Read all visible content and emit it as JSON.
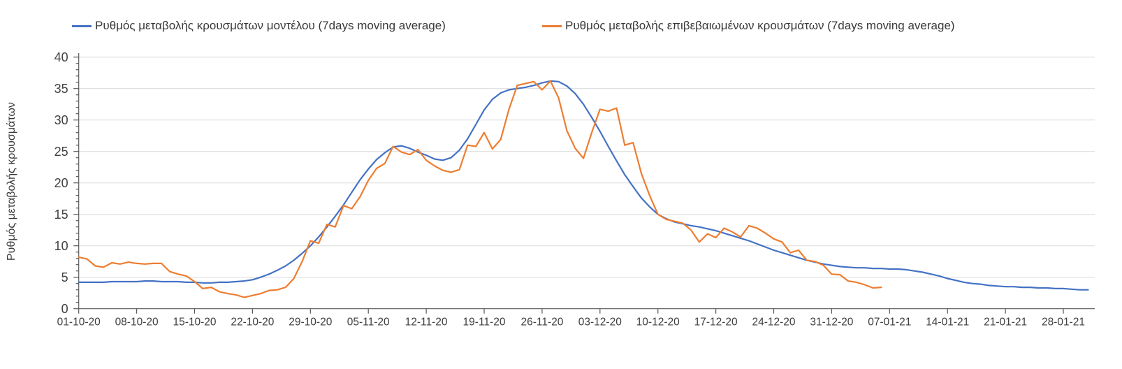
{
  "page": {
    "background": "#FFFFFF"
  },
  "chart_data": {
    "type": "line",
    "title": "",
    "xlabel": "",
    "ylabel": "Ρυθμός μεταβολής κρουσμάτων",
    "ylim": [
      0,
      40
    ],
    "y_major_step": 5,
    "y_minor_step": 1,
    "grid": "horizontal",
    "legend_position": "top",
    "axis_color": "#595959",
    "grid_color": "#D9D9D9",
    "tick_text_color": "#404040",
    "x_frequency": "daily",
    "x_start_date": "01-10-20",
    "x_end_date_model": "31-01-21",
    "x_end_date_confirmed": "06-01-21",
    "x_tick_labels": [
      "01-10-20",
      "08-10-20",
      "15-10-20",
      "22-10-20",
      "29-10-20",
      "05-11-20",
      "12-11-20",
      "19-11-20",
      "26-11-20",
      "03-12-20",
      "10-12-20",
      "17-12-20",
      "24-12-20",
      "31-12-20",
      "07-01-21",
      "14-01-21",
      "21-01-21",
      "28-01-21"
    ],
    "x_tick_day_step": 7,
    "series": [
      {
        "name": "Ρυθμός μεταβολής κρουσμάτων μοντέλου (7days moving average)",
        "color": "#4472C4",
        "start_day": 0,
        "values": [
          4.2,
          4.2,
          4.2,
          4.2,
          4.3,
          4.3,
          4.3,
          4.3,
          4.4,
          4.4,
          4.3,
          4.3,
          4.3,
          4.2,
          4.2,
          4.1,
          4.1,
          4.2,
          4.2,
          4.3,
          4.4,
          4.6,
          5.0,
          5.5,
          6.1,
          6.8,
          7.7,
          8.8,
          10.0,
          11.4,
          13.0,
          14.7,
          16.5,
          18.5,
          20.5,
          22.2,
          23.7,
          24.8,
          25.7,
          25.9,
          25.5,
          24.9,
          24.4,
          23.8,
          23.6,
          24.0,
          25.2,
          27.0,
          29.3,
          31.6,
          33.3,
          34.3,
          34.8,
          35.0,
          35.2,
          35.5,
          35.9,
          36.2,
          36.1,
          35.4,
          34.2,
          32.5,
          30.4,
          28.2,
          25.8,
          23.5,
          21.3,
          19.4,
          17.6,
          16.2,
          15.0,
          14.3,
          13.8,
          13.5,
          13.2,
          13.0,
          12.7,
          12.4,
          12.0,
          11.6,
          11.2,
          10.8,
          10.3,
          9.8,
          9.3,
          8.9,
          8.5,
          8.1,
          7.7,
          7.4,
          7.1,
          6.9,
          6.7,
          6.6,
          6.5,
          6.5,
          6.4,
          6.4,
          6.3,
          6.3,
          6.2,
          6.0,
          5.8,
          5.5,
          5.2,
          4.8,
          4.5,
          4.2,
          4.0,
          3.9,
          3.7,
          3.6,
          3.5,
          3.5,
          3.4,
          3.4,
          3.3,
          3.3,
          3.2,
          3.2,
          3.1,
          3.0,
          3.0
        ]
      },
      {
        "name": "Ρυθμός μεταβολής επιβεβαιωμένων κρουσμάτων (7days moving average)",
        "color": "#ED7D31",
        "start_day": 0,
        "values": [
          8.2,
          7.9,
          6.8,
          6.6,
          7.3,
          7.1,
          7.4,
          7.2,
          7.1,
          7.2,
          7.2,
          5.9,
          5.5,
          5.2,
          4.3,
          3.2,
          3.4,
          2.7,
          2.4,
          2.2,
          1.8,
          2.1,
          2.4,
          2.9,
          3.0,
          3.4,
          4.8,
          7.5,
          10.8,
          10.4,
          13.4,
          13.0,
          16.4,
          15.9,
          17.8,
          20.4,
          22.3,
          23.1,
          25.8,
          24.9,
          24.5,
          25.3,
          23.6,
          22.7,
          22.0,
          21.7,
          22.1,
          26.0,
          25.8,
          28.0,
          25.4,
          26.9,
          31.7,
          35.5,
          35.8,
          36.1,
          34.8,
          36.2,
          33.5,
          28.3,
          25.5,
          23.9,
          28.0,
          31.7,
          31.4,
          31.9,
          26.0,
          26.4,
          21.5,
          18.0,
          15.0,
          14.2,
          13.9,
          13.6,
          12.5,
          10.6,
          11.9,
          11.3,
          12.8,
          12.2,
          11.4,
          13.2,
          12.8,
          12.0,
          11.1,
          10.6,
          8.9,
          9.3,
          7.7,
          7.5,
          6.9,
          5.5,
          5.4,
          4.4,
          4.2,
          3.8,
          3.3,
          3.4
        ]
      }
    ]
  }
}
